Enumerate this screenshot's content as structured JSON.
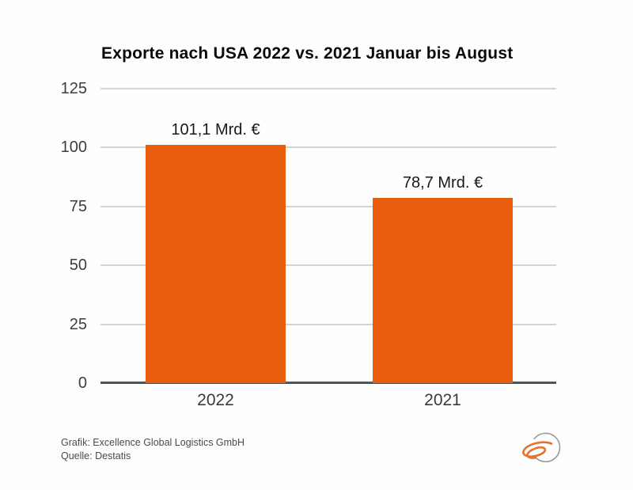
{
  "header": {
    "title": "Exporte nach USA 2022 vs. 2021 Januar bis August"
  },
  "chart_data": {
    "type": "bar",
    "title": "Exporte nach USA 2022 vs. 2021 Januar bis August",
    "categories": [
      "2022",
      "2021"
    ],
    "values": [
      101.1,
      78.7
    ],
    "value_labels": [
      "101,1 Mrd. €",
      "78,7 Mrd. €"
    ],
    "unit": "Mrd. €",
    "xlabel": "",
    "ylabel": "",
    "ylim": [
      0,
      125
    ],
    "yticks": [
      0,
      25,
      50,
      75,
      100,
      125
    ],
    "ytick_labels": [
      "0",
      "25",
      "50",
      "75",
      "100",
      "125"
    ],
    "grid": "horizontal",
    "legend": "none",
    "bar_color": "#E95E0E"
  },
  "footer": {
    "credit": "Grafik: Excellence Global Logistics GmbH",
    "source": "Quelle: Destatis"
  },
  "colors": {
    "bar": "#E95E0E",
    "gridline": "#D4D4D4",
    "axis": "#555555",
    "tick_text": "#3D3D3D",
    "title_text": "#0B0B0B",
    "footer_text": "#4A4A4A",
    "logo_orange": "#E2742E",
    "logo_gray": "#9A9A9A",
    "background": "#FFFEFE"
  },
  "logo": {
    "name": "excellence-logo"
  }
}
